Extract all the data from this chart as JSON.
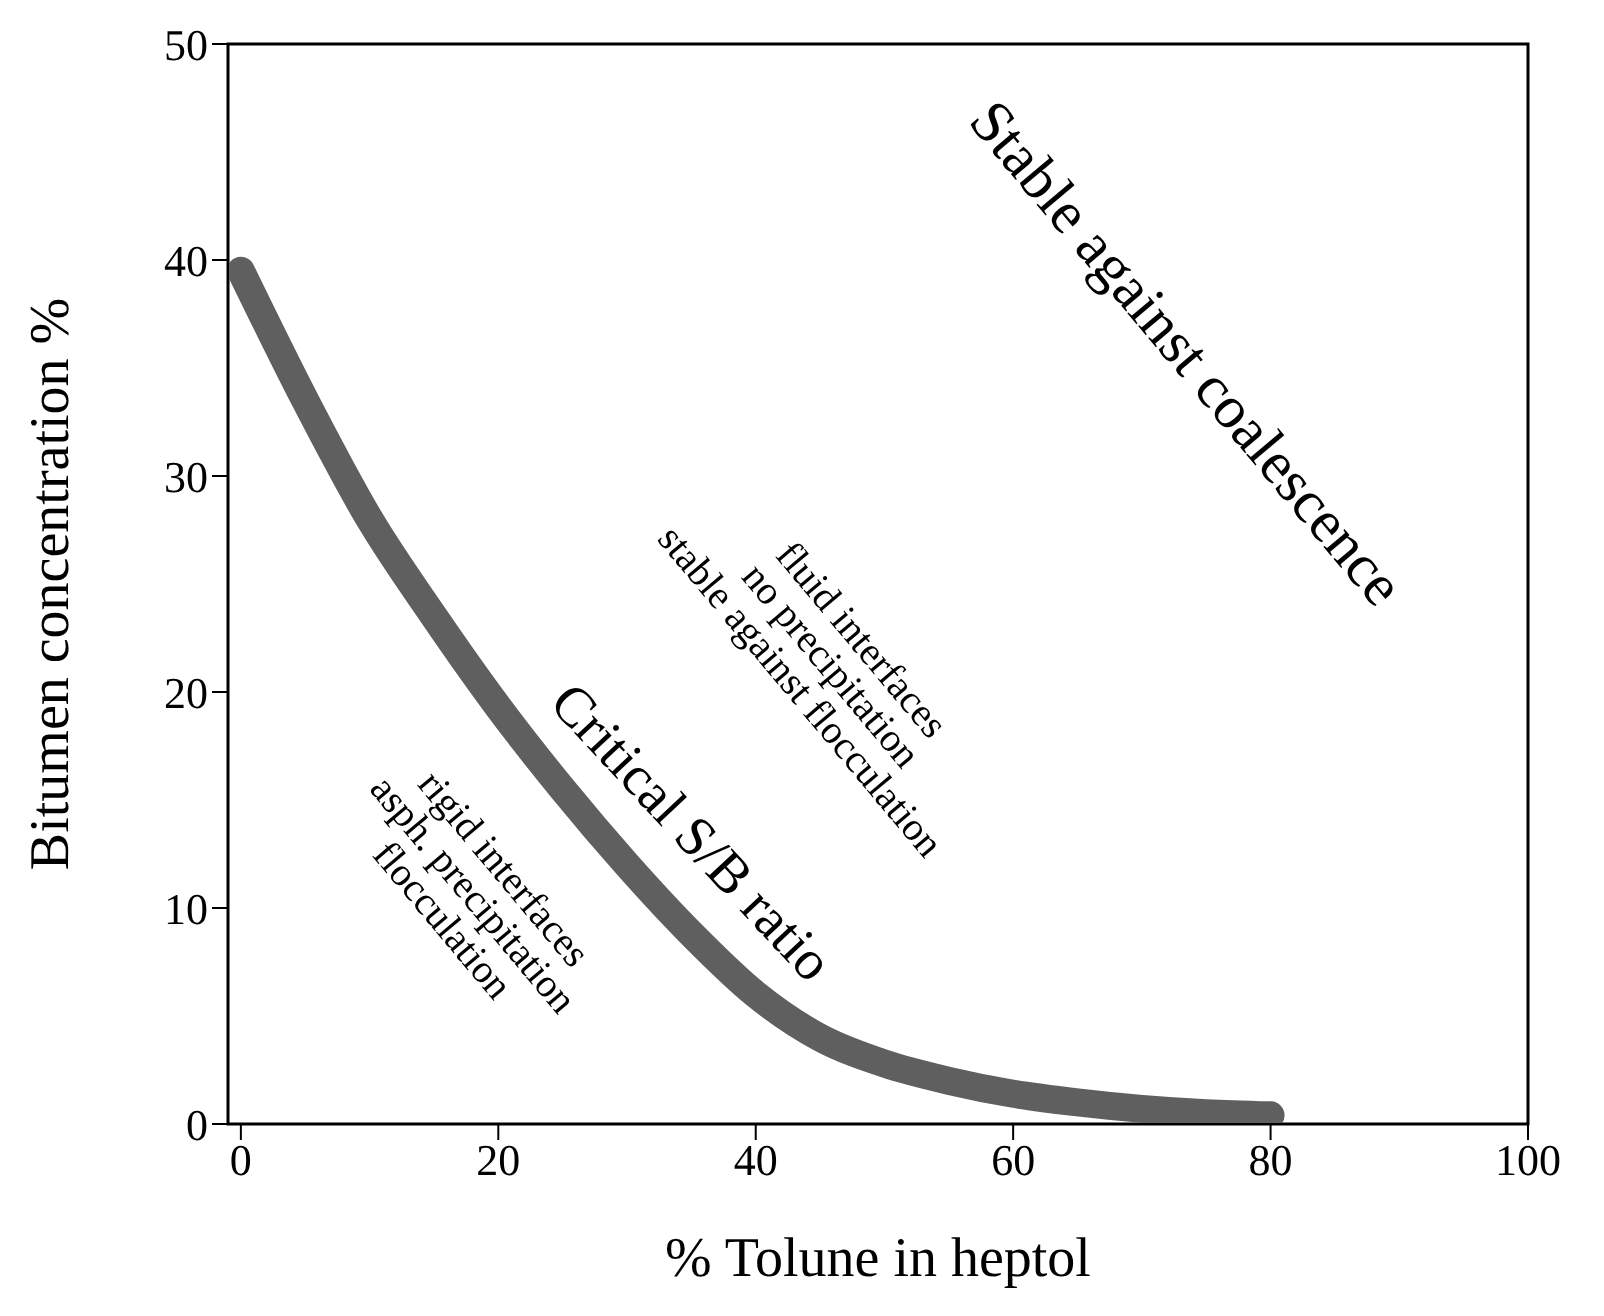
{
  "chart_data": {
    "type": "line",
    "xlabel": "% Tolune in heptol",
    "ylabel": "Bitumen concentration %",
    "x": [
      0,
      5,
      10,
      15,
      20,
      25,
      30,
      35,
      40,
      45,
      50,
      55,
      60,
      65,
      70,
      75,
      80
    ],
    "series": [
      {
        "color": "#5f5f5f",
        "values": [
          39.5,
          33.5,
          28,
          23.5,
          19.3,
          15.5,
          12,
          8.8,
          6,
          4,
          2.8,
          2,
          1.4,
          1,
          0.7,
          0.5,
          0.4
        ]
      }
    ],
    "xlim": [
      -1,
      100
    ],
    "xticks": [
      0,
      20,
      40,
      60,
      80,
      100
    ],
    "ylim": [
      0,
      50
    ],
    "yticks": [
      0,
      10,
      20,
      30,
      40,
      50
    ],
    "marker": "none",
    "line_style": "solid",
    "annotations": [
      "Stable against coalescence",
      "fluid interfaces\nno precipitation\nstable against flocculation",
      "Critical S/B ratio",
      "rigid interfaces\nasph. precipitation\nflocculation"
    ]
  }
}
